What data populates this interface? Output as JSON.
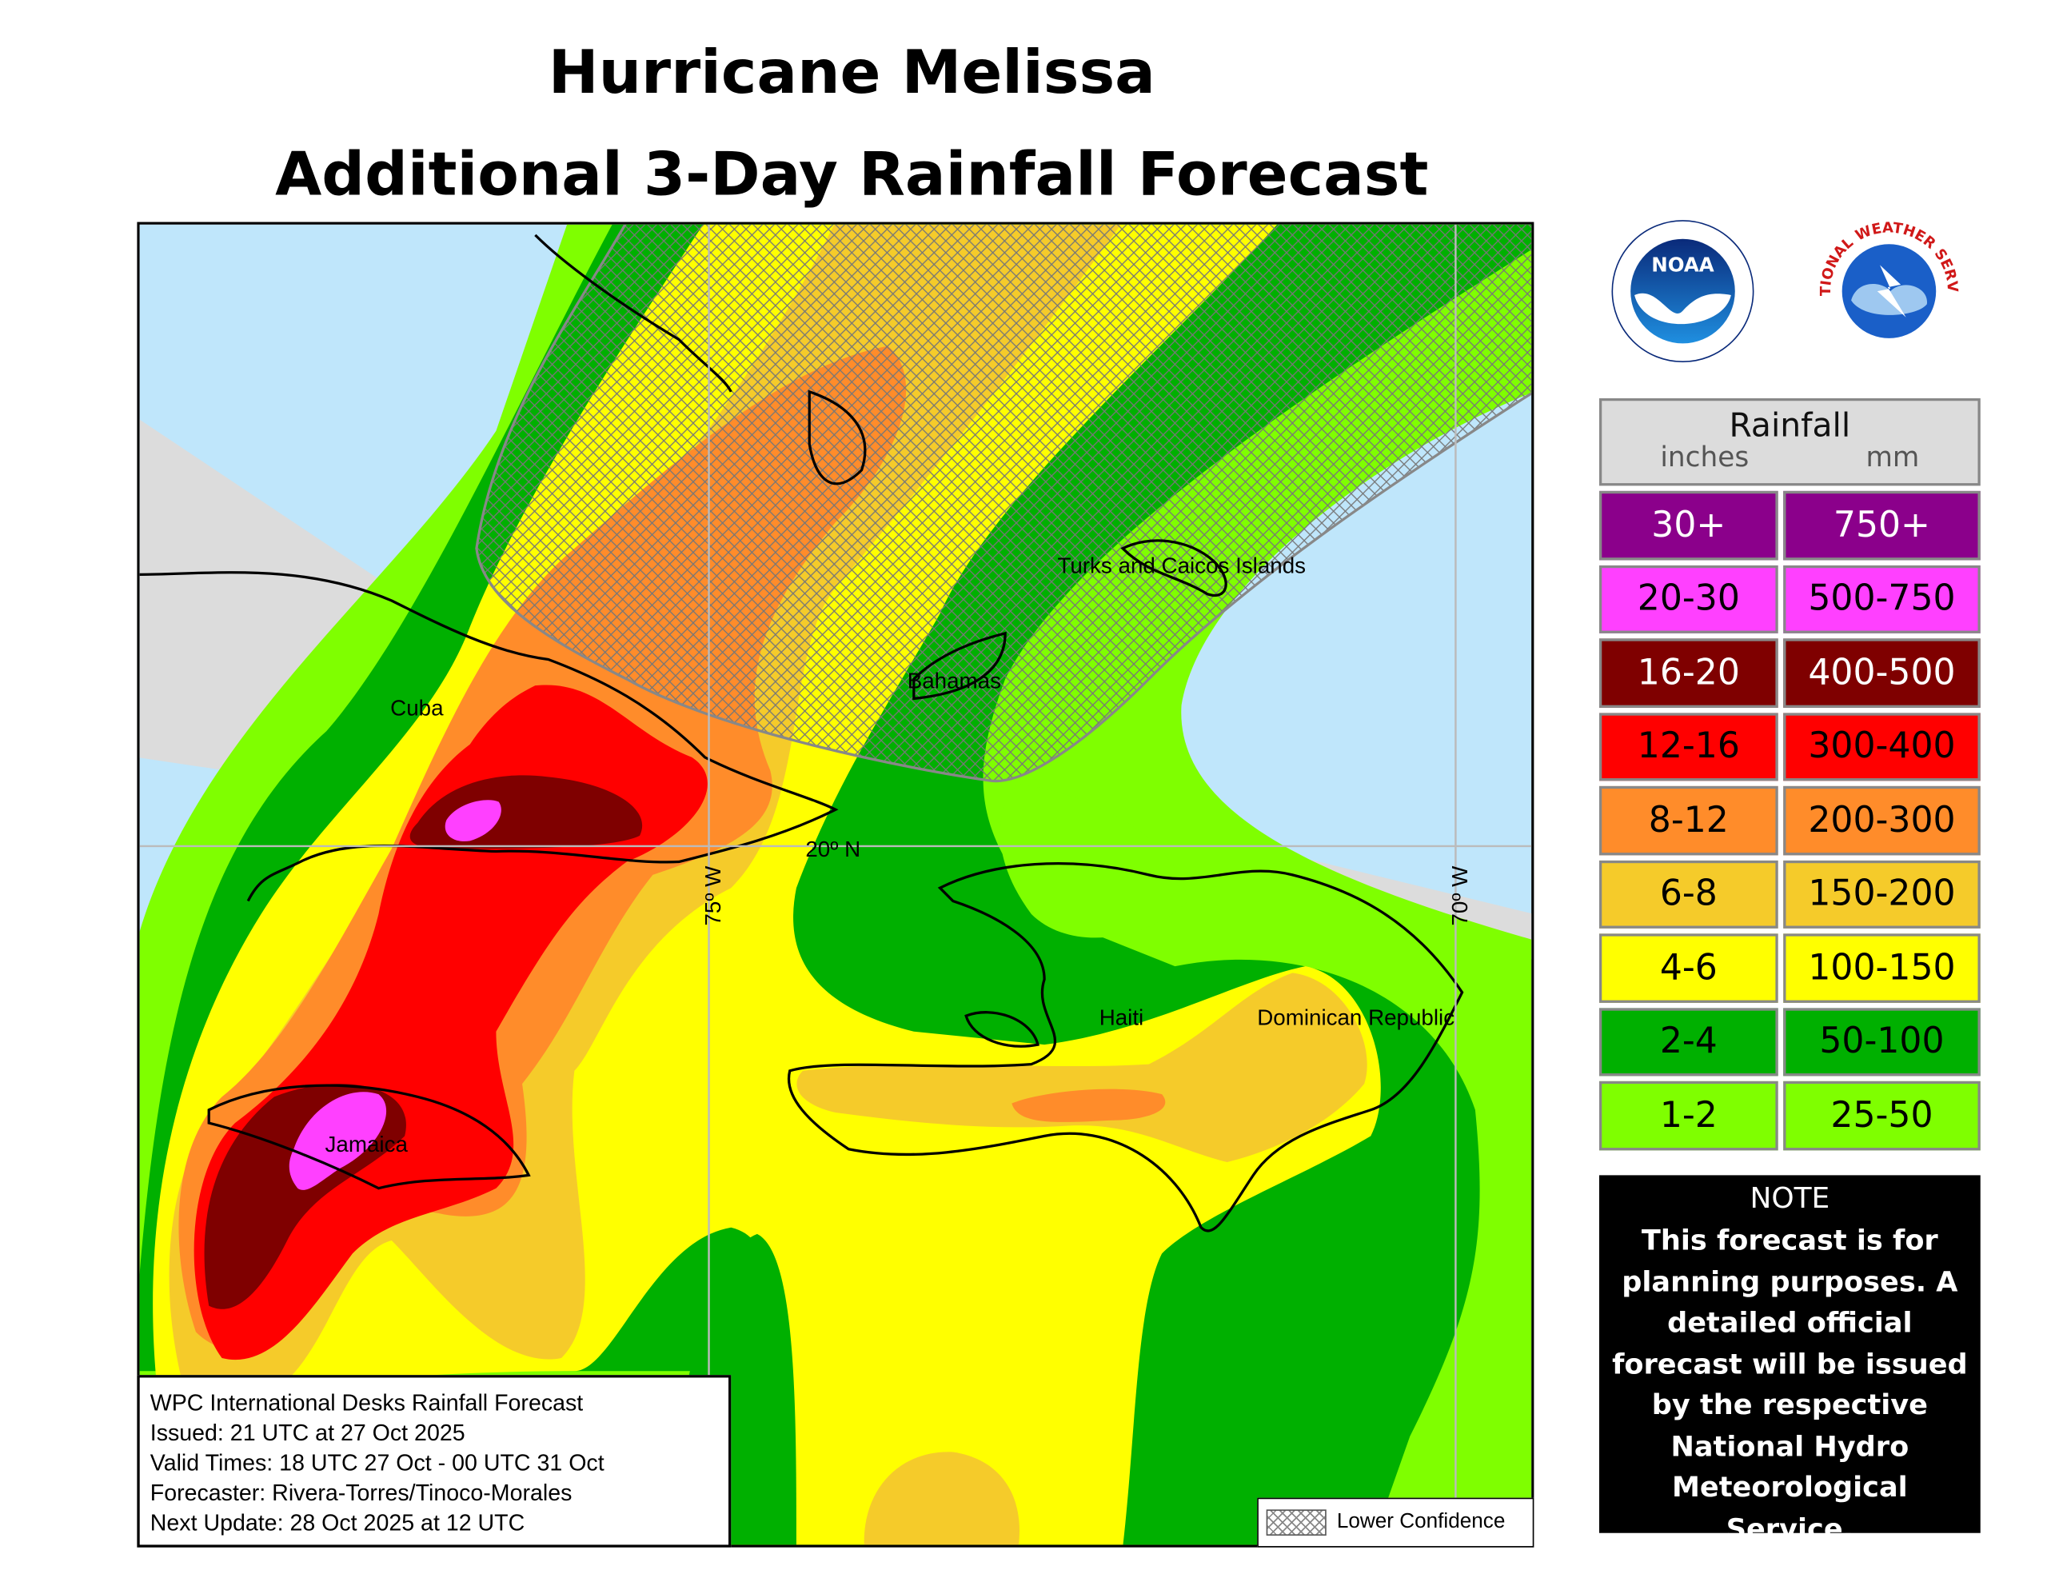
{
  "title": {
    "line1": "Hurricane Melissa",
    "line2": "Additional 3-Day Rainfall Forecast"
  },
  "map": {
    "places": {
      "turks_caicos": "Turks and Caicos Islands",
      "bahamas": "Bahamas",
      "cuba": "Cuba",
      "haiti": "Haiti",
      "dominican_republic": "Dominican Republic",
      "jamaica": "Jamaica"
    },
    "grid_labels": {
      "lon75": "75º W",
      "lon70": "70º W",
      "lat20": "20º N"
    },
    "colors": {
      "ocean": "#bfe6fb",
      "land": "#dcdcdc"
    }
  },
  "info_box": {
    "line1": "WPC International Desks Rainfall Forecast",
    "line2": "Issued: 21 UTC at 27 Oct 2025",
    "line3": "Valid Times: 18 UTC 27 Oct - 00 UTC 31 Oct",
    "line4": "Forecaster: Rivera-Torres/Tinoco-Morales",
    "line5": "Next Update: 28 Oct 2025 at 12 UTC"
  },
  "lower_confidence_label": "Lower Confidence",
  "legend": {
    "title": "Rainfall",
    "unit_in": "inches",
    "unit_mm": "mm",
    "rows": [
      {
        "in": "30+",
        "mm": "750+",
        "color": "#8b008b",
        "text": "#ffffff"
      },
      {
        "in": "20-30",
        "mm": "500-750",
        "color": "#ff40ff",
        "text": "#000000"
      },
      {
        "in": "16-20",
        "mm": "400-500",
        "color": "#7f0000",
        "text": "#ffffff"
      },
      {
        "in": "12-16",
        "mm": "300-400",
        "color": "#ff0000",
        "text": "#000000"
      },
      {
        "in": "8-12",
        "mm": "200-300",
        "color": "#ff8c2a",
        "text": "#000000"
      },
      {
        "in": "6-8",
        "mm": "150-200",
        "color": "#f5cb2a",
        "text": "#000000"
      },
      {
        "in": "4-6",
        "mm": "100-150",
        "color": "#ffff00",
        "text": "#000000"
      },
      {
        "in": "2-4",
        "mm": "50-100",
        "color": "#00b000",
        "text": "#000000"
      },
      {
        "in": "1-2",
        "mm": "25-50",
        "color": "#7fff00",
        "text": "#000000"
      }
    ]
  },
  "note": {
    "heading": "NOTE",
    "body": "This forecast is for planning purposes. A detailed official forecast will be issued by the respective National Hydro Meteorological Service."
  },
  "logos": {
    "noaa": "NOAA",
    "nws": "NATIONAL WEATHER SERVICE"
  }
}
